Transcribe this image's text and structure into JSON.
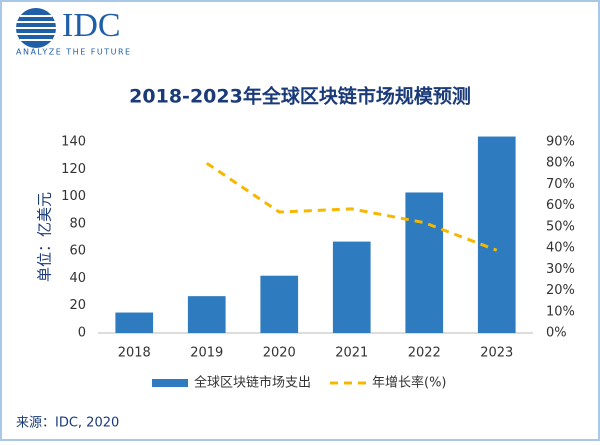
{
  "header": {
    "logo": "IDC",
    "tagline": "ANALYZE THE FUTURE"
  },
  "chart_data": {
    "type": "bar_line",
    "title": "2018-2023年全球区块链市场规模预测",
    "y_label": "单位：亿美元",
    "source": "来源：IDC, 2020",
    "categories": [
      "2018",
      "2019",
      "2020",
      "2021",
      "2022",
      "2023"
    ],
    "series": [
      {
        "name": "全球区块链市场支出",
        "color": "#2e7bbf",
        "type": "bar",
        "values": [
          15,
          27,
          42,
          67,
          103,
          144
        ]
      },
      {
        "name": "年增长率(%)",
        "color": "#f5b800",
        "type": "line",
        "axis": "y2",
        "values": [
          null,
          80,
          57,
          58.5,
          52,
          39
        ]
      }
    ],
    "ylim": [
      0,
      140
    ],
    "yticks": [
      0,
      20,
      40,
      60,
      80,
      100,
      120,
      140
    ],
    "y2lim": [
      0,
      90
    ],
    "y2ticks": [
      {
        "value": 0,
        "label": "0%"
      },
      {
        "value": 10,
        "label": "10%"
      },
      {
        "value": 20,
        "label": "20%"
      },
      {
        "value": 30,
        "label": "30%"
      },
      {
        "value": 40,
        "label": "40%"
      },
      {
        "value": 50,
        "label": "50%"
      },
      {
        "value": 60,
        "label": "60%"
      },
      {
        "value": 70,
        "label": "70%"
      },
      {
        "value": 80,
        "label": "80%"
      },
      {
        "value": 90,
        "label": "90%"
      }
    ],
    "legend": "bottom"
  }
}
